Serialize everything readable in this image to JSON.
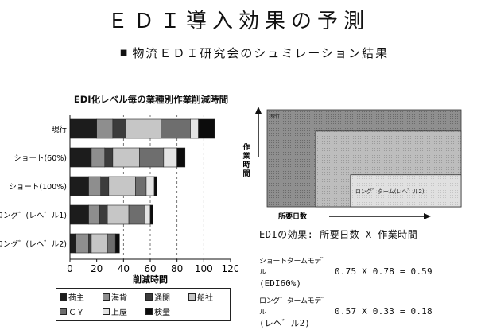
{
  "slide": {
    "title": "ＥＤＩ導入効果の予測",
    "subtitle": "物流ＥＤＩ研究会のシュミレーション結果"
  },
  "chart_data": [
    {
      "type": "bar",
      "orientation": "horizontal",
      "stacked": true,
      "title": "EDI化レベル毎の業種別作業削減時間",
      "xlabel": "削減時間",
      "xlim": [
        0,
        120
      ],
      "xticks": [
        0,
        20,
        40,
        60,
        80,
        100,
        120
      ],
      "gridlines_dashed_at": [
        40,
        60,
        80,
        100
      ],
      "categories": [
        "現行",
        "ショート(60%)",
        "ショート(100%)",
        "ロング゛(レヘ゛ル1)",
        "ロング゛(レヘ゛ル2)"
      ],
      "series": [
        {
          "name": "荷主",
          "color": "#1c1c1c",
          "values": [
            20,
            16,
            14,
            14,
            4
          ]
        },
        {
          "name": "海貨",
          "color": "#8e8e8e",
          "values": [
            12,
            10,
            9,
            8,
            10
          ]
        },
        {
          "name": "通関",
          "color": "#3c3c3c",
          "values": [
            10,
            6,
            6,
            6,
            2
          ]
        },
        {
          "name": "船社",
          "color": "#c6c6c6",
          "values": [
            26,
            20,
            20,
            16,
            12
          ]
        },
        {
          "name": "ＣＹ",
          "color": "#6e6e6e",
          "values": [
            22,
            18,
            8,
            12,
            6
          ]
        },
        {
          "name": "上屋",
          "color": "#e4e4e4",
          "values": [
            6,
            10,
            6,
            4,
            0
          ]
        },
        {
          "name": "検量",
          "color": "#0c0c0c",
          "values": [
            12,
            6,
            2,
            2,
            3
          ]
        }
      ],
      "legend_placement": "bottom"
    },
    {
      "type": "area",
      "description_kind": "nested-rectangles",
      "ylabel": "作業時間",
      "xlabel": "所要日数",
      "rects": [
        {
          "label": "現行",
          "days": 1.0,
          "time": 1.0
        },
        {
          "label": "",
          "days": 0.75,
          "time": 0.78
        },
        {
          "label": "ロング゛ターム(レヘ゛ル2)",
          "days": 0.57,
          "time": 0.33
        }
      ]
    }
  ],
  "effects": {
    "heading": "EDIの効果: 所要日数 X 作業時間",
    "short_model": {
      "label": "ショートタームモデ゛ル",
      "formula": "0.75 X 0.78 = 0.59",
      "sub": "(EDI60%)"
    },
    "long_model": {
      "label": "ロング゛タームモデ゛ル",
      "formula": "0.57 X 0.33 = 0.18",
      "sub": "(レヘ゛ル2)"
    }
  }
}
